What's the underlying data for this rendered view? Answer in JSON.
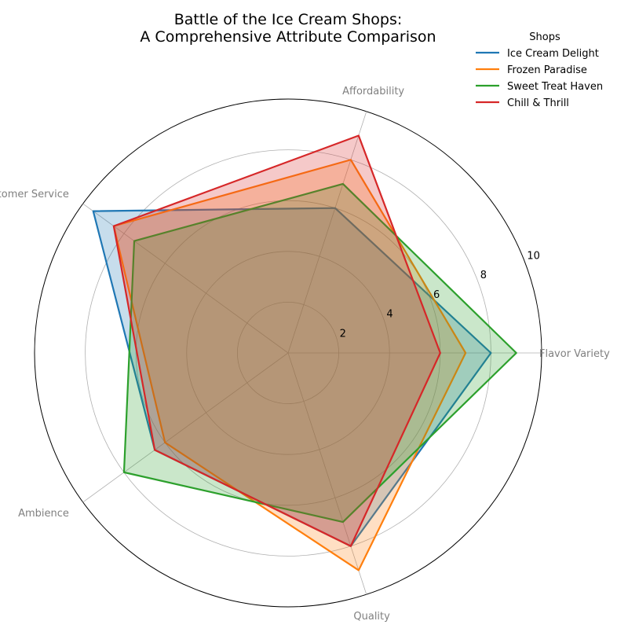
{
  "chart_data": {
    "type": "radar",
    "title_lines": [
      "Battle of the Ice Cream Shops:",
      "A Comprehensive Attribute Comparison"
    ],
    "axes": [
      "Flavor Variety",
      "Affordability",
      "Customer Service",
      "Ambience",
      "Quality"
    ],
    "r_ticks": [
      2,
      4,
      6,
      8,
      10
    ],
    "r_ticks_labels": [
      "2",
      "4",
      "6",
      "8",
      "10"
    ],
    "rlim": [
      0,
      10
    ],
    "grid": true,
    "legend": {
      "title": "Shops",
      "placement": "top-right"
    },
    "series": [
      {
        "name": "Ice Cream Delight",
        "color": "#1f77b4",
        "values": [
          8,
          6,
          9.5,
          6.5,
          8
        ]
      },
      {
        "name": "Frozen Paradise",
        "color": "#ff7f0e",
        "values": [
          7,
          8,
          8.5,
          6,
          9
        ]
      },
      {
        "name": "Sweet Treat Haven",
        "color": "#2ca02c",
        "values": [
          9,
          7,
          7.5,
          8,
          7
        ]
      },
      {
        "name": "Chill & Thrill",
        "color": "#d62728",
        "values": [
          6,
          9,
          8.5,
          6.5,
          8
        ]
      }
    ]
  }
}
